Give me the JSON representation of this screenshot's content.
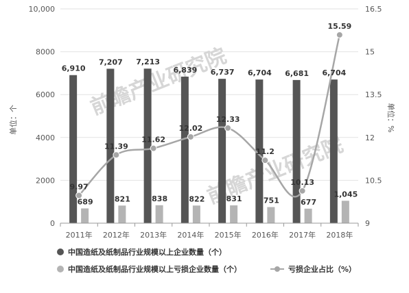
{
  "chart_data": {
    "type": "bar",
    "categories": [
      "2011年",
      "2012年",
      "2013年",
      "2014年",
      "2015年",
      "2016年",
      "2017年",
      "2018年"
    ],
    "series": [
      {
        "name": "中国造纸及纸制品行业规模以上企业数量（个）",
        "type": "bar",
        "axis": "left",
        "color": "#555555",
        "values": [
          6910,
          7207,
          7213,
          6839,
          6737,
          6704,
          6681,
          6704
        ],
        "labels": [
          "6,910",
          "7,207",
          "7,213",
          "6,839",
          "6,737",
          "6,704",
          "6,681",
          "6,704"
        ]
      },
      {
        "name": "中国造纸及纸制品行业规模以上亏损企业数量（个）",
        "type": "bar",
        "axis": "left",
        "color": "#b4b4b4",
        "values": [
          689,
          821,
          838,
          822,
          831,
          751,
          677,
          1045
        ],
        "labels": [
          "689",
          "821",
          "838",
          "822",
          "831",
          "751",
          "677",
          "1,045"
        ]
      },
      {
        "name": "亏损企业占比（%）",
        "type": "line",
        "axis": "right",
        "color": "#a6a6a6",
        "values": [
          9.97,
          11.39,
          11.62,
          12.02,
          12.33,
          11.2,
          10.13,
          15.59
        ],
        "labels": [
          "9.97",
          "11.39",
          "11.62",
          "12.02",
          "12.33",
          "11.2",
          "10.13",
          "15.59"
        ]
      }
    ],
    "y_left": {
      "label": "单位：个",
      "ylim": [
        0,
        10000
      ],
      "ticks": [
        0,
        2000,
        4000,
        6000,
        8000,
        10000
      ],
      "tick_labels": [
        "0",
        "2000",
        "4000",
        "6000",
        "8000",
        "10,000"
      ]
    },
    "y_right": {
      "label": "单位：%",
      "ylim": [
        9,
        16.5
      ],
      "ticks": [
        9,
        10.5,
        12,
        13.5,
        15,
        16.5
      ],
      "tick_labels": [
        "9",
        "10.5",
        "12",
        "13.5",
        "15",
        "16.5"
      ]
    },
    "grid": true,
    "legend_position": "bottom-left"
  },
  "watermark": "前瞻产业研究院"
}
